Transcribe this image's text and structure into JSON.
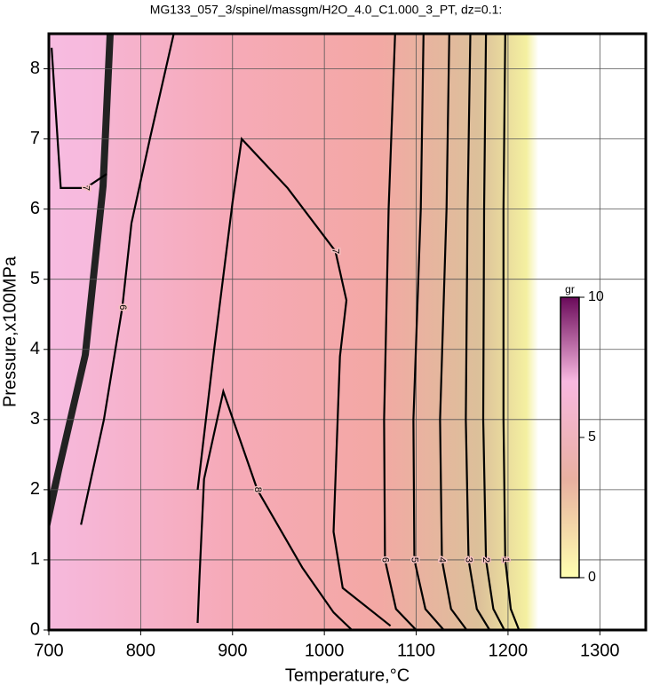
{
  "chart_data": {
    "type": "contour",
    "title": "MG133_057_3/spinel/massgm/H2O_4.0_C1.000_3_PT, dz=0.1:",
    "x_label": "Temperature,°C",
    "y_label": "Pressure,x100MPa",
    "xlim": [
      700,
      1350
    ],
    "ylim": [
      0,
      8.5
    ],
    "xticks": [
      700,
      800,
      900,
      1000,
      1100,
      1200,
      1300
    ],
    "yticks": [
      0,
      1,
      2,
      3,
      4,
      5,
      6,
      7,
      8
    ],
    "grid": true,
    "colorbar": {
      "label": "gr",
      "lim": [
        0,
        10
      ],
      "ticks": [
        0,
        5,
        10
      ]
    },
    "contours": [
      {
        "level": 1,
        "x": [
          1197,
          1195,
          1195,
          1197,
          1203,
          1212
        ],
        "y": [
          8.5,
          6,
          3,
          1,
          0.3,
          0
        ]
      },
      {
        "level": 2,
        "x": [
          1176,
          1174,
          1173,
          1176,
          1184,
          1196
        ],
        "y": [
          8.5,
          6,
          3,
          1,
          0.3,
          0
        ]
      },
      {
        "level": 3,
        "x": [
          1159,
          1156,
          1154,
          1157,
          1166,
          1180
        ],
        "y": [
          8.5,
          6,
          3,
          1,
          0.3,
          0
        ]
      },
      {
        "level": 4,
        "x": [
          1136,
          1133,
          1126,
          1128,
          1138,
          1155
        ],
        "y": [
          8.5,
          6,
          3,
          1,
          0.3,
          0
        ]
      },
      {
        "level": 5,
        "x": [
          1108,
          1105,
          1097,
          1098,
          1110,
          1130
        ],
        "y": [
          8.5,
          6,
          3,
          1,
          0.3,
          0
        ]
      },
      {
        "level": 6,
        "x": [
          1077,
          1070,
          1065,
          1066,
          1078,
          1100
        ],
        "y": [
          8.5,
          6,
          3,
          1,
          0.3,
          0
        ]
      },
      {
        "level": 7,
        "x": [
          862,
          880,
          900,
          910,
          960,
          1012,
          1024,
          1017,
          1010,
          1020,
          1072
        ],
        "y": [
          2.0,
          4.0,
          6.1,
          7.0,
          6.3,
          5.4,
          4.7,
          3.9,
          1.4,
          0.6,
          0.06
        ]
      },
      {
        "level": 8,
        "x": [
          862,
          864,
          869,
          890,
          927,
          976,
          1010,
          1030
        ],
        "y": [
          0.1,
          0.76,
          2.15,
          3.4,
          2.0,
          0.89,
          0.25,
          0
        ]
      },
      {
        "level": 7,
        "x": [
          703,
          713,
          740,
          763
        ],
        "y": [
          8.3,
          6.3,
          6.3,
          6.5
        ]
      },
      {
        "level": 6,
        "x": [
          836,
          810,
          790,
          780,
          760,
          735
        ],
        "y": [
          8.5,
          7.0,
          5.8,
          4.6,
          3.0,
          1.5
        ]
      }
    ]
  }
}
